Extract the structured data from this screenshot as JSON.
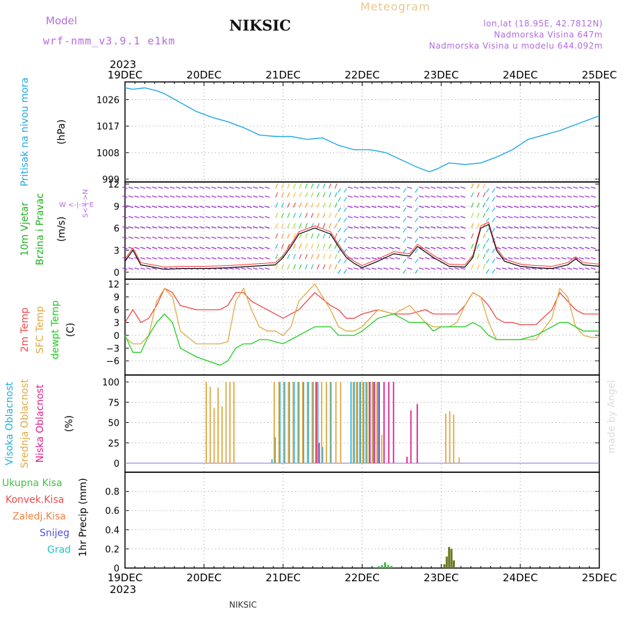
{
  "header": {
    "model_label": "Model",
    "model_name": "wrf-nmm_v3.9.1  e1km",
    "station": "NIKSIC",
    "meteogram": "Meteogram",
    "lonlat": "lon,lat (18.95E, 42.7812N)",
    "elevation": "Nadmorska Visina 647m",
    "elevation_model": "Nadmorska Visina u modelu 644.092m",
    "year": "2023",
    "footer_station": "NIKSIC",
    "watermark": "made by Angel"
  },
  "colors": {
    "pressure": "#1fa7e6",
    "temp2m": "#f04848",
    "sfc": "#e0a840",
    "dewpt": "#20cc20",
    "wind_black": "#000000",
    "wind_red": "#ff3030",
    "purple": "#9a2ad8",
    "cloud_high": "#20b0e0",
    "cloud_mid": "#e0a840",
    "cloud_low": "#e0208a",
    "precip_total": "#40c040",
    "precip_conv": "#f04848",
    "precip_frz": "#f08040",
    "precip_snow": "#5050e0",
    "precip_grad": "#20c0c0"
  },
  "chart_data": [
    {
      "type": "line",
      "panel": "pressure",
      "ylabel": "Pritisak na nivou mora",
      "yunit": "(hPa)",
      "x_ticks": [
        "19DEC",
        "20DEC",
        "21DEC",
        "22DEC",
        "23DEC",
        "24DEC",
        "25DEC"
      ],
      "ylim": [
        999,
        1032
      ],
      "y_ticks": [
        999,
        1008,
        1017,
        1026
      ],
      "series": [
        {
          "name": "Pritisak na nivou mora",
          "x": [
            0,
            0.1,
            0.25,
            0.4,
            0.5,
            0.7,
            0.9,
            1.1,
            1.3,
            1.5,
            1.7,
            1.9,
            2.1,
            2.3,
            2.5,
            2.7,
            2.9,
            3.1,
            3.3,
            3.5,
            3.7,
            3.85,
            3.95,
            4.1,
            4.3,
            4.5,
            4.7,
            4.9,
            5.1,
            5.3,
            5.5,
            5.7,
            5.9,
            6.0
          ],
          "values": [
            1030,
            1029.5,
            1030,
            1029,
            1028,
            1025,
            1022,
            1020,
            1018.5,
            1016.5,
            1014,
            1013.5,
            1013.5,
            1012.5,
            1013,
            1010.5,
            1009,
            1009,
            1008,
            1005.5,
            1003,
            1001.5,
            1002.5,
            1004.5,
            1004,
            1004.5,
            1006.5,
            1009,
            1012.5,
            1014,
            1015.5,
            1017.5,
            1019.5,
            1020.5
          ]
        }
      ]
    },
    {
      "type": "line",
      "panel": "wind",
      "ylabel": "10m Vjetar",
      "ylabel2": "Brzina i Pravac",
      "yunit": "(m/s)",
      "compass_ns": "S<-|->N",
      "compass_we": "W <-|-> E",
      "ylim": [
        0,
        12
      ],
      "y_ticks": [
        0,
        3,
        6,
        9,
        12
      ],
      "series": [
        {
          "name": "speed",
          "x": [
            0,
            0.1,
            0.2,
            0.3,
            0.5,
            0.7,
            1,
            1.3,
            1.6,
            1.9,
            2.0,
            2.1,
            2.2,
            2.4,
            2.6,
            2.7,
            2.8,
            2.9,
            3.0,
            3.2,
            3.4,
            3.6,
            3.7,
            3.9,
            4.1,
            4.3,
            4.4,
            4.5,
            4.6,
            4.7,
            4.8,
            5.0,
            5.2,
            5.4,
            5.6,
            5.7,
            5.8,
            6.0
          ],
          "values": [
            1.5,
            3,
            1,
            0.8,
            0.4,
            0.5,
            0.5,
            0.6,
            0.8,
            1,
            2,
            3.5,
            5.2,
            6,
            5.2,
            3.5,
            2,
            1.2,
            0.6,
            1.5,
            2.5,
            2.2,
            3.5,
            2,
            0.8,
            0.7,
            2,
            6,
            6.5,
            3,
            1.5,
            0.8,
            0.6,
            0.5,
            1,
            1.8,
            1,
            0.8
          ]
        }
      ]
    },
    {
      "type": "line",
      "panel": "temperature",
      "ylabel": "2m Temp",
      "ylabel2": "SFC Temp",
      "ylabel3": "dewpt Temp",
      "yunit": "(C)",
      "ylim": [
        -8,
        13
      ],
      "y_ticks": [
        -6,
        -3,
        0,
        3,
        6,
        9,
        12
      ],
      "series": [
        {
          "name": "2m Temp",
          "x": [
            0,
            0.1,
            0.2,
            0.3,
            0.4,
            0.5,
            0.6,
            0.7,
            0.9,
            1.2,
            1.3,
            1.4,
            1.5,
            1.6,
            1.7,
            1.8,
            1.9,
            2.0,
            2.1,
            2.2,
            2.4,
            2.6,
            2.7,
            2.8,
            2.9,
            3.0,
            3.2,
            3.4,
            3.6,
            3.8,
            3.9,
            4.0,
            4.1,
            4.2,
            4.3,
            4.4,
            4.5,
            4.6,
            4.7,
            4.8,
            4.9,
            5.0,
            5.2,
            5.4,
            5.5,
            5.6,
            5.7,
            5.8,
            5.9,
            6.0
          ],
          "values": [
            3,
            6,
            3,
            4,
            7,
            11,
            10,
            7,
            6,
            6,
            7,
            10,
            10,
            8,
            7,
            6,
            5,
            4,
            5,
            6,
            10,
            7,
            6,
            4,
            4,
            5,
            6,
            5,
            5,
            6,
            5,
            5,
            5,
            5,
            7,
            10,
            9,
            7,
            4,
            3,
            3,
            2.5,
            2.5,
            6,
            10,
            8,
            6,
            5,
            5,
            5
          ]
        },
        {
          "name": "SFC Temp",
          "x": [
            0,
            0.1,
            0.2,
            0.3,
            0.4,
            0.5,
            0.6,
            0.7,
            0.9,
            1.2,
            1.3,
            1.4,
            1.5,
            1.6,
            1.7,
            1.8,
            1.9,
            2.0,
            2.1,
            2.2,
            2.4,
            2.6,
            2.7,
            2.8,
            2.9,
            3.0,
            3.2,
            3.4,
            3.6,
            3.8,
            3.9,
            4.0,
            4.1,
            4.2,
            4.3,
            4.4,
            4.5,
            4.6,
            4.7,
            4.8,
            4.9,
            5.0,
            5.2,
            5.4,
            5.5,
            5.6,
            5.7,
            5.8,
            5.9,
            6.0
          ],
          "values": [
            -0.5,
            -2,
            -2,
            0,
            8,
            11,
            9,
            1,
            -2,
            -2,
            -1.5,
            8,
            11,
            6,
            2,
            1,
            1,
            0,
            2,
            8,
            12,
            6,
            2,
            1,
            1,
            2,
            6,
            5,
            7,
            3,
            2,
            2,
            2,
            3,
            7,
            10,
            9,
            3,
            -1,
            -1,
            -1,
            -1,
            -1,
            4,
            11,
            9,
            2,
            0,
            -0.5,
            -0.5
          ]
        },
        {
          "name": "dewpt Temp",
          "x": [
            0,
            0.1,
            0.2,
            0.3,
            0.4,
            0.5,
            0.6,
            0.7,
            0.9,
            1.2,
            1.3,
            1.4,
            1.5,
            1.6,
            1.7,
            1.8,
            1.9,
            2.0,
            2.1,
            2.2,
            2.4,
            2.6,
            2.7,
            2.8,
            2.9,
            3.0,
            3.2,
            3.4,
            3.6,
            3.8,
            3.9,
            4.0,
            4.1,
            4.2,
            4.3,
            4.4,
            4.5,
            4.6,
            4.7,
            4.8,
            4.9,
            5.0,
            5.2,
            5.4,
            5.5,
            5.6,
            5.7,
            5.8,
            5.9,
            6.0
          ],
          "values": [
            0,
            -4,
            -4,
            0,
            3,
            5,
            3,
            -3,
            -5,
            -7,
            -6,
            -3,
            -2,
            -2,
            -1,
            -1,
            -1.5,
            -2,
            -1,
            0,
            2,
            2,
            0,
            0,
            0,
            1,
            4,
            5,
            3,
            3,
            1,
            2,
            2,
            2,
            2,
            3,
            2,
            0,
            -1,
            -1,
            -1,
            -1,
            0,
            2,
            3,
            3,
            2,
            1,
            1,
            1
          ]
        }
      ]
    },
    {
      "type": "bar",
      "panel": "clouds",
      "ylabel": "Visoka Oblacnost",
      "ylabel2": "Srednja Oblacnost",
      "ylabel3": "Niska Oblacnost",
      "yunit": "(%)",
      "ylim": [
        0,
        100
      ],
      "y_ticks": [
        0,
        25,
        50,
        75,
        100
      ],
      "series": [
        {
          "name": "Visoka Oblacnost",
          "x": [
            1.86,
            1.9,
            1.96,
            2.02,
            2.08,
            2.14,
            2.2,
            2.26,
            2.32,
            2.38,
            2.44,
            2.5,
            2.6,
            2.86,
            2.9,
            2.94,
            2.98,
            3.02,
            3.06,
            3.1,
            3.14,
            3.2
          ],
          "values": [
            5,
            32,
            100,
            100,
            100,
            100,
            100,
            100,
            100,
            100,
            100,
            20,
            100,
            100,
            100,
            100,
            100,
            100,
            100,
            100,
            100,
            100
          ]
        },
        {
          "name": "Srednja Oblacnost",
          "x": [
            1.02,
            1.07,
            1.12,
            1.17,
            1.22,
            1.27,
            1.32,
            1.37,
            1.88,
            1.94,
            2.0,
            2.06,
            2.12,
            2.18,
            2.24,
            2.3,
            2.36,
            2.42,
            2.48,
            2.54,
            2.6,
            2.66,
            2.72,
            2.88,
            2.92,
            2.96,
            3.0,
            3.04,
            3.08,
            3.12,
            3.18,
            3.24,
            4.05,
            4.1,
            4.15,
            4.22
          ],
          "values": [
            100,
            94,
            68,
            93,
            70,
            100,
            100,
            100,
            100,
            100,
            100,
            100,
            100,
            100,
            100,
            100,
            100,
            100,
            100,
            100,
            100,
            100,
            100,
            100,
            100,
            100,
            100,
            100,
            100,
            100,
            100,
            35,
            61,
            64,
            60,
            7
          ]
        },
        {
          "name": "Niska Oblacnost",
          "x": [
            2.4,
            2.44,
            3.08,
            3.14,
            3.2,
            3.26,
            3.32,
            3.38,
            3.55,
            3.6,
            3.68
          ],
          "values": [
            100,
            25,
            100,
            100,
            100,
            100,
            100,
            100,
            8,
            65,
            73
          ]
        }
      ]
    },
    {
      "type": "bar",
      "panel": "precip",
      "ylabel": "1hr Precip (mm)",
      "legend": [
        "Ukupna Kisa",
        "Konvek.Kisa",
        "Zaledj.Kisa",
        "Snijeg",
        "Grad"
      ],
      "ylim": [
        0,
        1
      ],
      "y_ticks": [
        0,
        0.2,
        0.4,
        0.6,
        0.8
      ],
      "series": [
        {
          "name": "Ukupna Kisa",
          "x": [
            3.17,
            3.21,
            3.25,
            3.29,
            3.33,
            3.37,
            4.04,
            4.07,
            4.1,
            4.13,
            4.16
          ],
          "values": [
            0.01,
            0.02,
            0.03,
            0.06,
            0.03,
            0.02,
            0.04,
            0.12,
            0.22,
            0.2,
            0.08
          ]
        }
      ]
    }
  ]
}
